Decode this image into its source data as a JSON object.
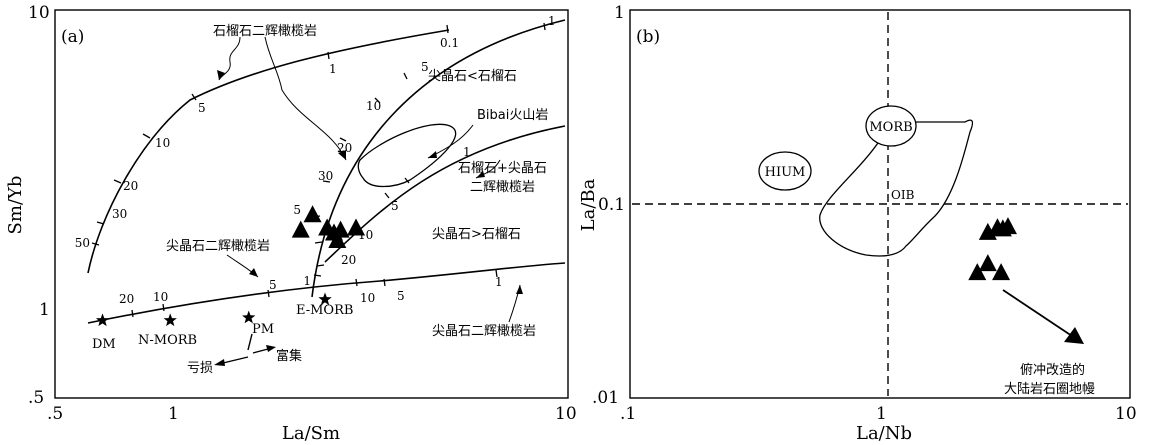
{
  "chart_data": [
    {
      "panel": "(a)",
      "type": "scatter",
      "xlabel": "La/Sm",
      "ylabel": "Sm/Yb",
      "x_scale": "log",
      "y_scale": "log",
      "xlim": [
        0.5,
        10
      ],
      "ylim": [
        0.5,
        10
      ],
      "x_ticks": [
        ".5",
        "1",
        "10"
      ],
      "y_ticks": [
        ".5",
        "1",
        "10"
      ],
      "series": [
        {
          "marker": "triangle",
          "points": [
            [
              2.1,
              1.82
            ],
            [
              2.25,
              2.05
            ],
            [
              2.45,
              1.85
            ],
            [
              2.55,
              1.78
            ],
            [
              2.65,
              1.82
            ],
            [
              2.6,
              1.68
            ],
            [
              2.9,
              1.85
            ]
          ]
        },
        {
          "marker": "star",
          "points": [
            [
              0.66,
              0.91
            ],
            [
              0.98,
              0.91
            ],
            [
              1.55,
              0.93
            ],
            [
              2.42,
              1.07
            ]
          ]
        }
      ],
      "reference_labels": [
        "DM",
        "N-MORB",
        "PM",
        "E-MORB"
      ],
      "curve_labels": [
        "石榴石二辉橄榄岩",
        "尖晶石<石榴石",
        "Bibai火山岩",
        "石榴石+尖晶石",
        "二辉橄榄岩",
        "尖晶石>石榴石",
        "尖晶石二辉橄榄岩",
        "尖晶石二辉橄榄岩"
      ],
      "melt_ticks_curve1": [
        "50",
        "30",
        "20",
        "10",
        "5",
        "1",
        "0.1"
      ],
      "melt_ticks_curve2": [
        "20",
        "10",
        "5",
        "1"
      ],
      "melt_ticks_curve3": [
        "1",
        "10",
        "5"
      ],
      "melt_ticks_curve4": [
        "20",
        "10",
        "5",
        "1"
      ],
      "melt_ticks_curve5": [
        "30",
        "20",
        "10",
        "5",
        "1"
      ],
      "arrow_labels": {
        "left": "亏损",
        "right": "富集"
      }
    },
    {
      "panel": "(b)",
      "type": "scatter",
      "xlabel": "La/Nb",
      "ylabel": "La/Ba",
      "x_scale": "log",
      "y_scale": "log",
      "xlim": [
        0.1,
        10
      ],
      "ylim": [
        0.01,
        1
      ],
      "x_ticks": [
        ".1",
        "1",
        "10"
      ],
      "y_ticks": [
        ".01",
        "0.1",
        "1"
      ],
      "series": [
        {
          "marker": "triangle",
          "points": [
            [
              2.7,
              0.071
            ],
            [
              2.95,
              0.075
            ],
            [
              3.1,
              0.074
            ],
            [
              3.25,
              0.076
            ],
            [
              2.45,
              0.044
            ],
            [
              2.7,
              0.049
            ],
            [
              3.05,
              0.044
            ]
          ]
        }
      ],
      "region_labels": [
        "MORB",
        "HIUM",
        "OIB"
      ],
      "annotation": [
        "俯冲改造的",
        "大陆岩石圈地幔"
      ]
    }
  ]
}
